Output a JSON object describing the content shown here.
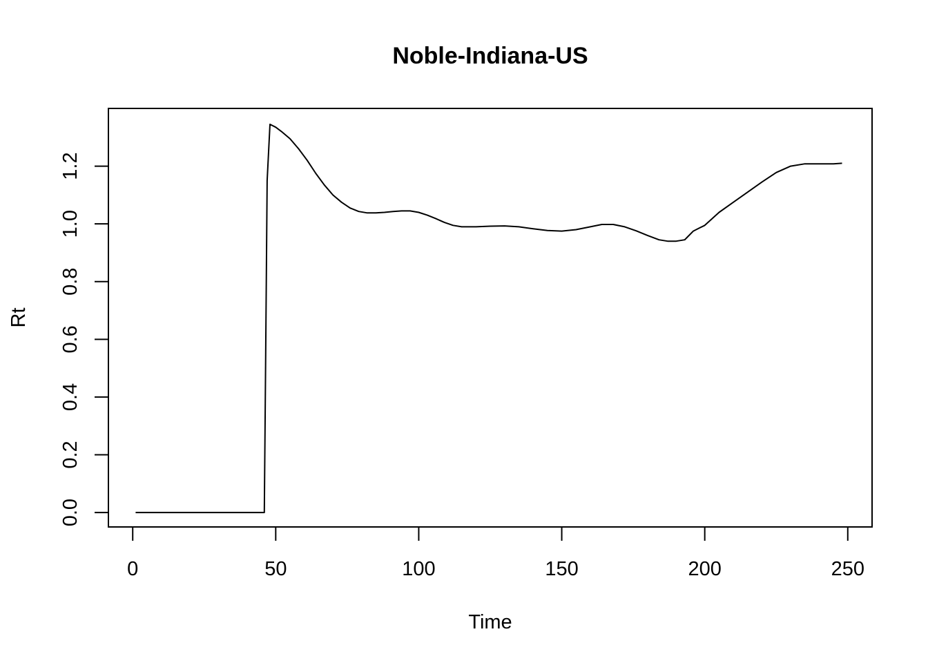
{
  "chart_data": {
    "type": "line",
    "title": "Noble-Indiana-US",
    "xlabel": "Time",
    "ylabel": "Rt",
    "xlim": [
      -8.5,
      258.5
    ],
    "ylim": [
      -0.05,
      1.4
    ],
    "xticks": [
      0,
      50,
      100,
      150,
      200,
      250
    ],
    "xtick_labels": [
      "0",
      "50",
      "100",
      "150",
      "200",
      "250"
    ],
    "yticks": [
      0.0,
      0.2,
      0.4,
      0.6,
      0.8,
      1.0,
      1.2
    ],
    "ytick_labels": [
      "0.0",
      "0.2",
      "0.4",
      "0.6",
      "0.8",
      "1.0",
      "1.2"
    ],
    "grid": false,
    "legend": "none",
    "line_color": "#000000",
    "series": [
      {
        "x": [
          1,
          10,
          20,
          30,
          40,
          46,
          46.5,
          47,
          48,
          50,
          52,
          55,
          58,
          61,
          64,
          67,
          70,
          73,
          76,
          79,
          82,
          85,
          88,
          91,
          94,
          97,
          100,
          103,
          106,
          109,
          112,
          115,
          120,
          125,
          130,
          135,
          140,
          145,
          150,
          155,
          160,
          164,
          168,
          172,
          176,
          180,
          184,
          187,
          190,
          193,
          194,
          196,
          198,
          200,
          205,
          210,
          215,
          220,
          225,
          230,
          235,
          240,
          245,
          248
        ],
        "y": [
          0,
          0,
          0,
          0,
          0,
          0,
          0.55,
          1.15,
          1.345,
          1.335,
          1.32,
          1.295,
          1.26,
          1.22,
          1.175,
          1.135,
          1.1,
          1.075,
          1.055,
          1.043,
          1.038,
          1.038,
          1.04,
          1.043,
          1.045,
          1.045,
          1.04,
          1.03,
          1.018,
          1.005,
          0.995,
          0.99,
          0.99,
          0.992,
          0.993,
          0.99,
          0.983,
          0.977,
          0.975,
          0.98,
          0.99,
          0.998,
          0.998,
          0.99,
          0.976,
          0.96,
          0.945,
          0.94,
          0.94,
          0.945,
          0.955,
          0.975,
          0.985,
          0.995,
          1.04,
          1.075,
          1.11,
          1.145,
          1.178,
          1.2,
          1.208,
          1.208,
          1.208,
          1.21
        ]
      }
    ]
  }
}
